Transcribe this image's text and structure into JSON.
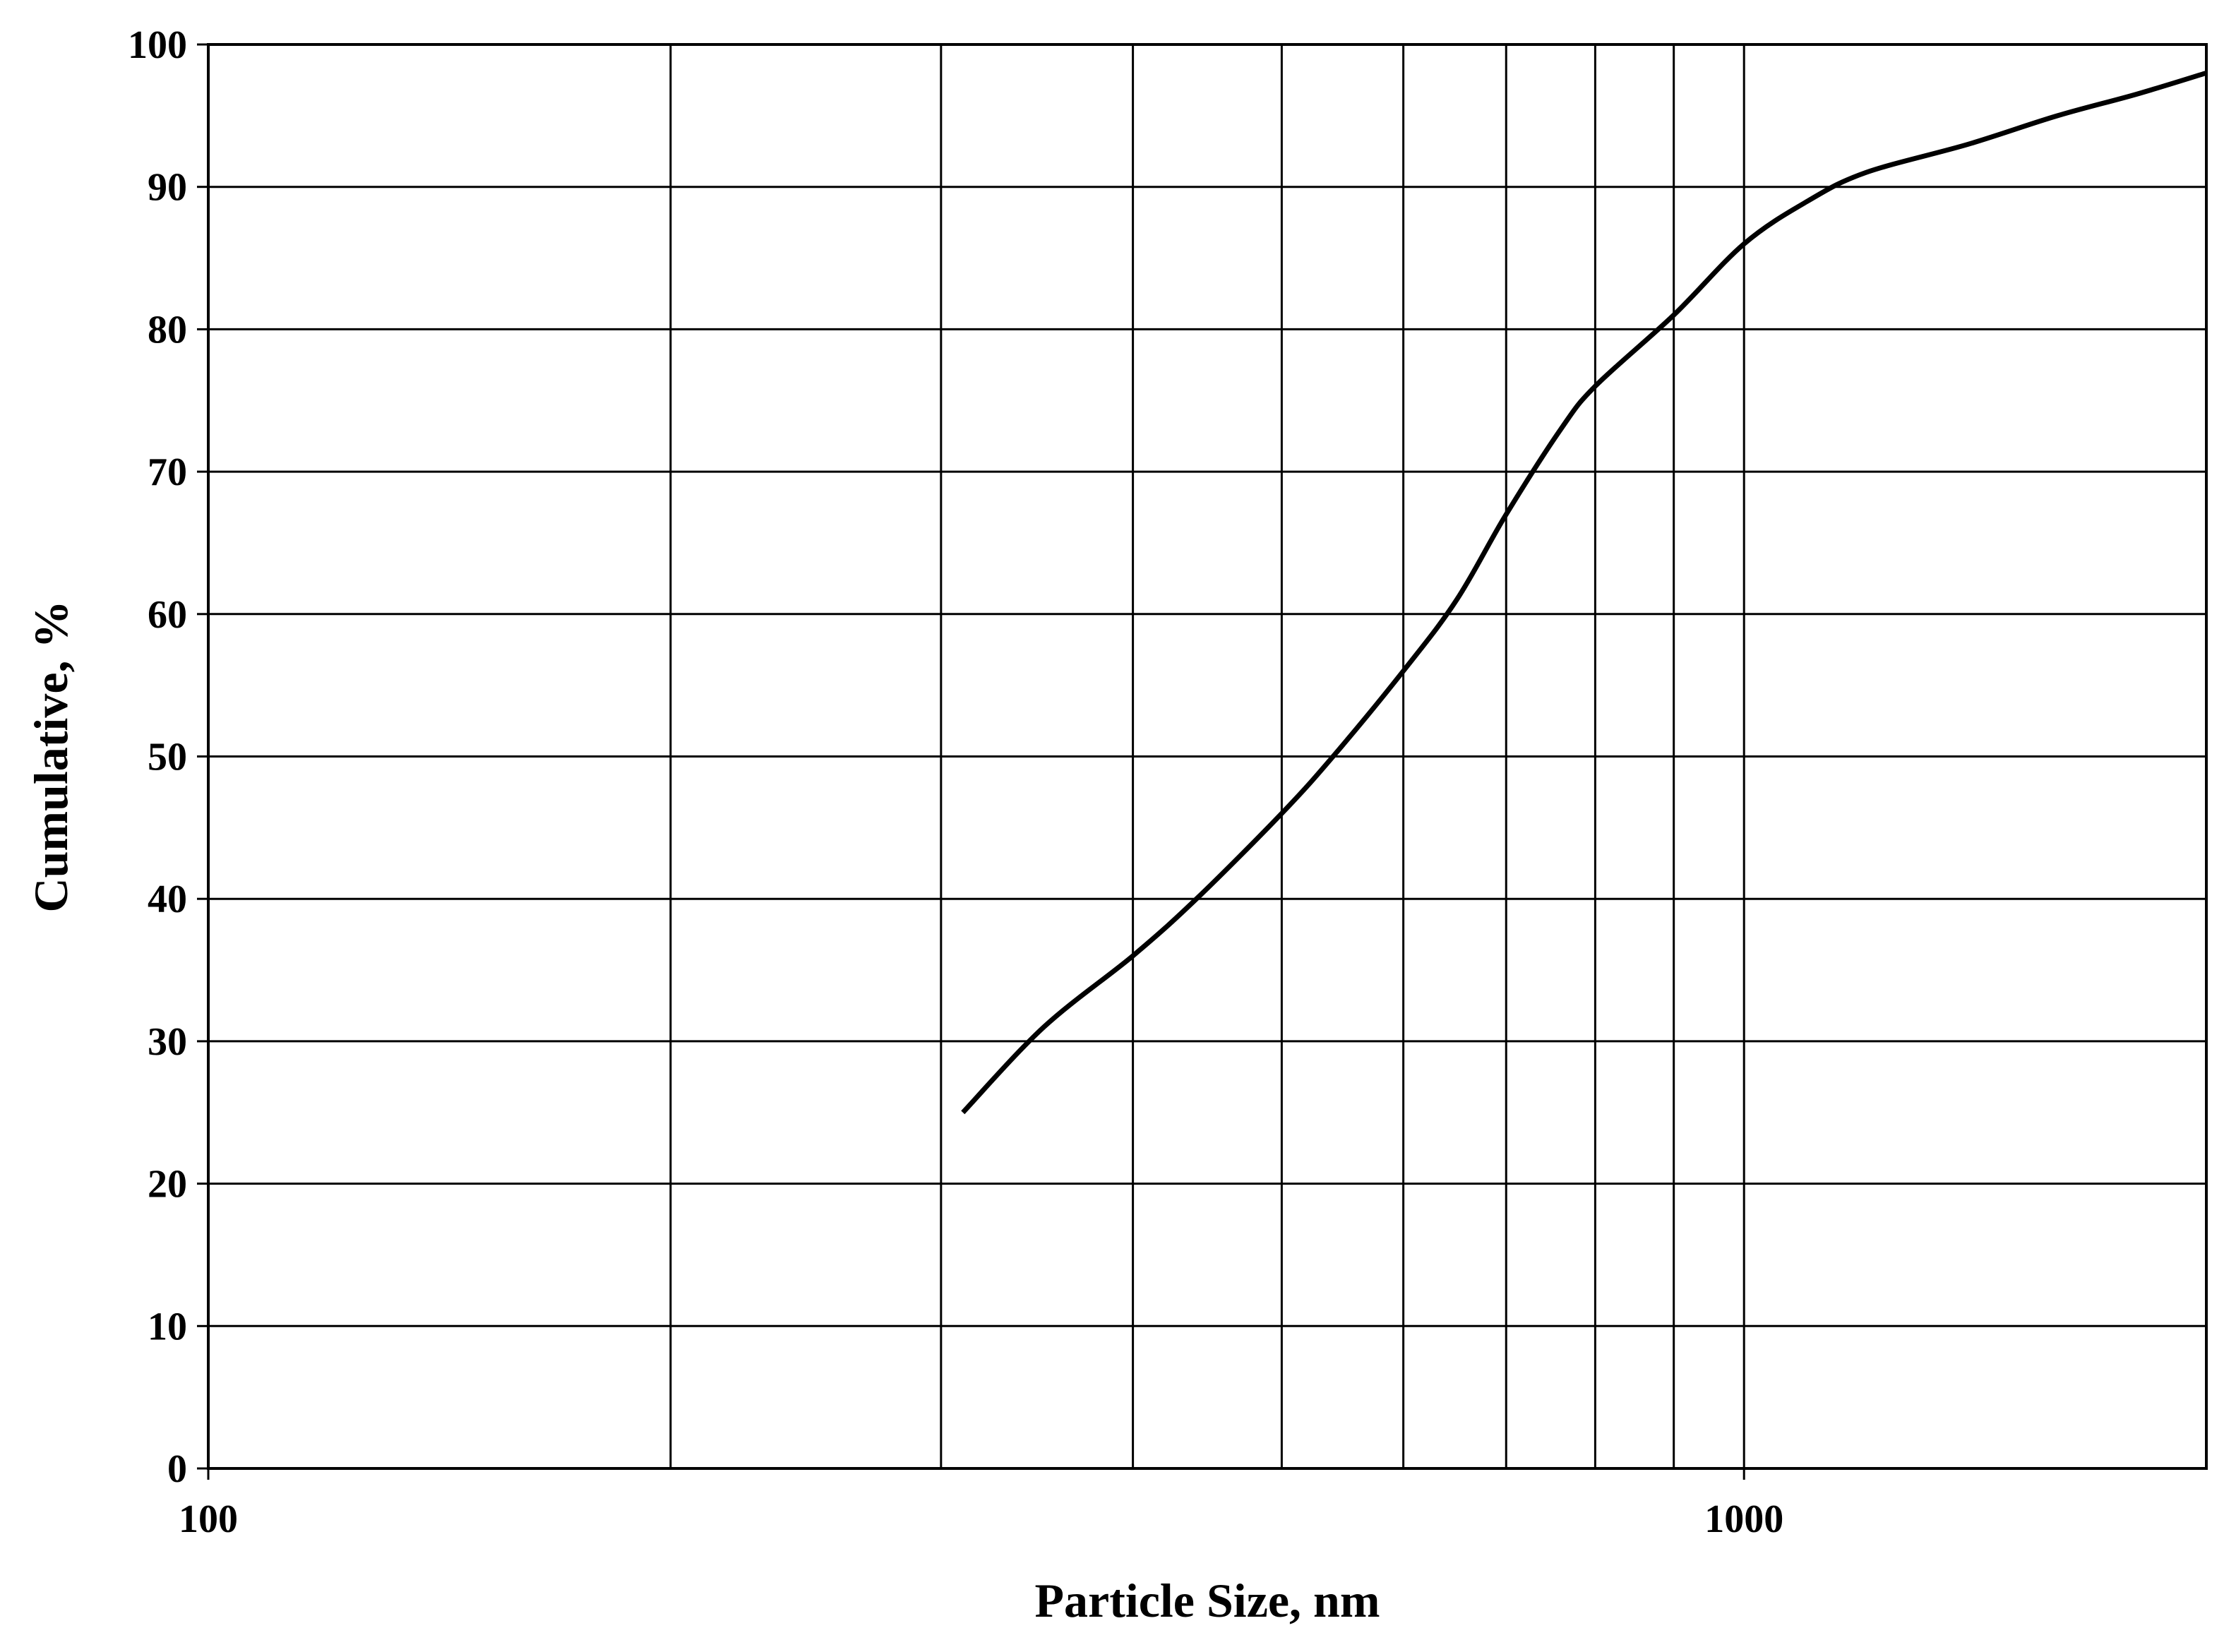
{
  "chart_data": {
    "type": "line",
    "x_scale": "log",
    "grid": true,
    "legend": "none",
    "xlabel": "Particle Size, nm",
    "ylabel": "Cumulative, %",
    "xlim": [
      100,
      2000
    ],
    "ylim": [
      0,
      100
    ],
    "x_ticks": [
      {
        "value": 100,
        "label": "100"
      },
      {
        "value": 1000,
        "label": "1000"
      }
    ],
    "x_gridlines": [
      200,
      300,
      400,
      500,
      600,
      700,
      800,
      900,
      1000
    ],
    "y_ticks": [
      {
        "value": 0,
        "label": "0"
      },
      {
        "value": 10,
        "label": "10"
      },
      {
        "value": 20,
        "label": "20"
      },
      {
        "value": 30,
        "label": "30"
      },
      {
        "value": 40,
        "label": "40"
      },
      {
        "value": 50,
        "label": "50"
      },
      {
        "value": 60,
        "label": "60"
      },
      {
        "value": 70,
        "label": "70"
      },
      {
        "value": 80,
        "label": "80"
      },
      {
        "value": 90,
        "label": "90"
      },
      {
        "value": 100,
        "label": "100"
      }
    ],
    "series": [
      {
        "color": "#000000",
        "x": [
          310,
          350,
          400,
          440,
          500,
          540,
          600,
          650,
          700,
          760,
          800,
          900,
          1000,
          1100,
          1200,
          1400,
          1600,
          1800,
          2000
        ],
        "y": [
          25,
          31,
          36,
          40,
          46,
          50,
          56,
          61,
          67,
          73,
          76,
          81,
          86,
          89,
          91,
          93,
          95,
          96.5,
          98
        ]
      }
    ]
  }
}
